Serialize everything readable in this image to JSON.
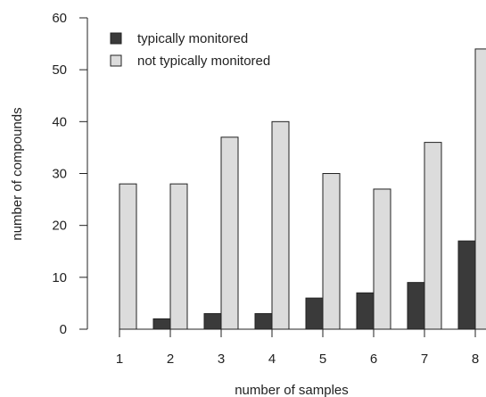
{
  "chart_data": {
    "type": "bar",
    "xlabel": "number of samples",
    "ylabel": "number of compounds",
    "categories": [
      "1",
      "2",
      "3",
      "4",
      "5",
      "6",
      "7",
      "8"
    ],
    "series": [
      {
        "name": "typically monitored",
        "values": [
          0,
          2,
          3,
          3,
          6,
          7,
          9,
          17
        ],
        "color": "#3a3a3a"
      },
      {
        "name": "not typically monitored",
        "values": [
          28,
          28,
          37,
          40,
          30,
          27,
          36,
          54
        ],
        "color": "#dcdcdc"
      }
    ],
    "ylim": [
      0,
      60
    ],
    "yticks": [
      0,
      10,
      20,
      30,
      40,
      50,
      60
    ],
    "grid": false,
    "legend_position": "top-left"
  }
}
